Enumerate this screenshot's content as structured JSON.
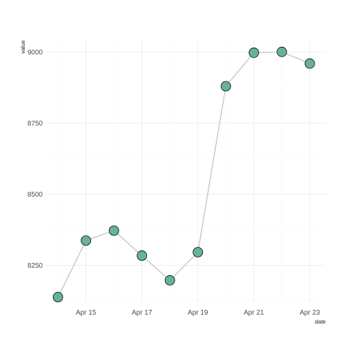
{
  "chart_data": {
    "type": "line",
    "xlabel": "date",
    "ylabel": "value",
    "x": [
      "Apr 14",
      "Apr 15",
      "Apr 16",
      "Apr 17",
      "Apr 18",
      "Apr 19",
      "Apr 20",
      "Apr 21",
      "Apr 22",
      "Apr 23"
    ],
    "values": [
      8138,
      8337,
      8372,
      8284,
      8197,
      8296,
      8880,
      8998,
      9001,
      8960
    ],
    "x_ticks": [
      "Apr 15",
      "Apr 17",
      "Apr 19",
      "Apr 21",
      "Apr 23"
    ],
    "y_ticks": [
      8250,
      8500,
      8750,
      9000
    ],
    "ylim": [
      8120,
      9050
    ],
    "grid": true,
    "line_color": "#bdbdbd",
    "point_fill": "#66b39a",
    "point_stroke": "#000000"
  }
}
